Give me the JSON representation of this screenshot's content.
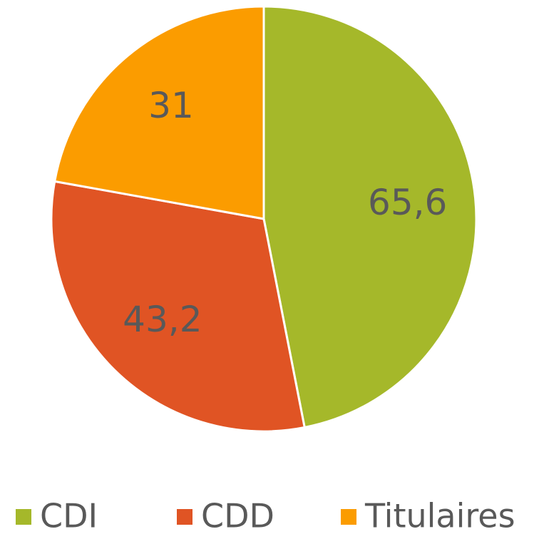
{
  "chart_data": {
    "type": "pie",
    "categories": [
      "CDI",
      "CDD",
      "Titulaires"
    ],
    "values": [
      65.6,
      43.2,
      31
    ],
    "value_labels": [
      "65,6",
      "43,2",
      "31"
    ],
    "colors": [
      "#a5b82a",
      "#e05424",
      "#fb9c00"
    ],
    "legend": "bottom"
  }
}
